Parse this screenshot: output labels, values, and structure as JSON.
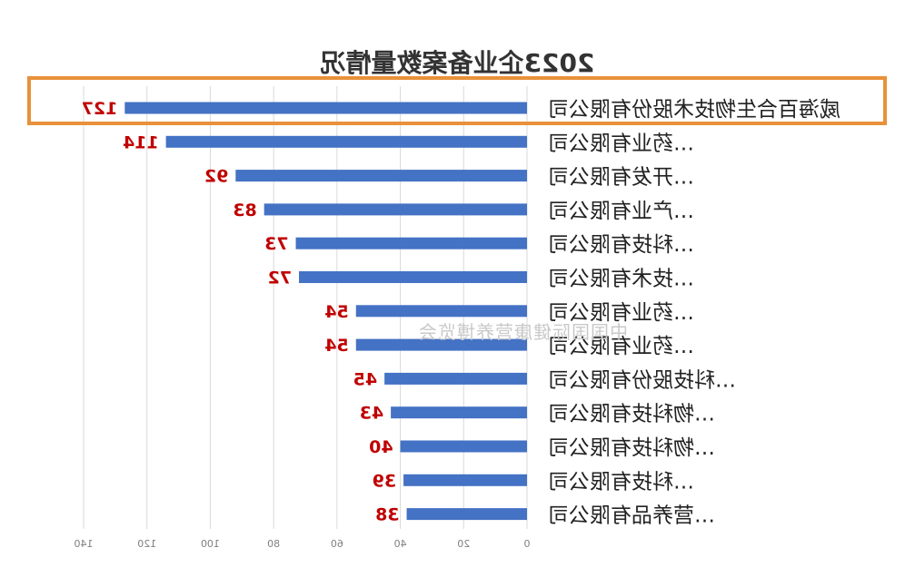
{
  "chart_data": {
    "type": "bar",
    "orientation": "horizontal",
    "mirrored": true,
    "title": "2023企业备案数量情况",
    "categories": [
      "威海百合生物技术股份有限公司",
      "…药业有限公司",
      "…开发有限公司",
      "…产业有限公司",
      "…科技有限公司",
      "…技术有限公司",
      "…药业有限公司",
      "…药业有限公司",
      "…科技股份有限公司",
      "…物科技有限公司",
      "…物科技有限公司",
      "…科技有限公司",
      "…营养品有限公司"
    ],
    "values": [
      127,
      114,
      92,
      83,
      73,
      72,
      54,
      54,
      45,
      43,
      40,
      39,
      38
    ],
    "xlim": [
      0,
      140
    ],
    "xticks": [
      0,
      20,
      40,
      60,
      80,
      100,
      120,
      140
    ],
    "grid": true,
    "highlighted_index": 0,
    "colors": {
      "bar": "#4472c4",
      "value_label": "#c00000",
      "highlight_border": "#e8913a",
      "grid": "#d9d9d9",
      "tick_label": "#7f7f7f",
      "category_label": "#222222"
    }
  },
  "watermark": {
    "text": "中国国际健康营养博览会"
  }
}
